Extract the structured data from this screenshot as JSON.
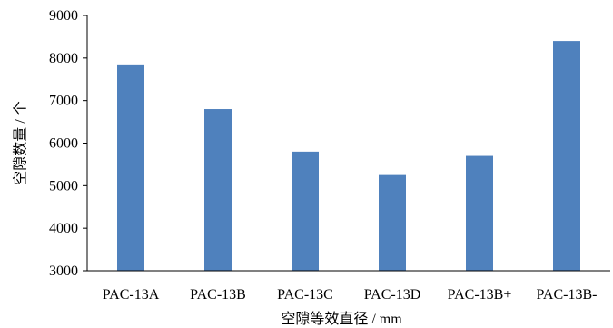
{
  "chart_data": {
    "type": "bar",
    "categories": [
      "PAC-13A",
      "PAC-13B",
      "PAC-13C",
      "PAC-13D",
      "PAC-13B+",
      "PAC-13B-"
    ],
    "values": [
      7850,
      6800,
      5800,
      5250,
      5700,
      8400
    ],
    "title": "",
    "xlabel": "空隙等效直径 / mm",
    "ylabel": "空隙数量 / 个",
    "ylim": [
      3000,
      9000
    ],
    "yticks": [
      3000,
      4000,
      5000,
      6000,
      7000,
      8000,
      9000
    ],
    "grid": false,
    "legend": "none",
    "bar_color": "#4f81bd",
    "axis_color": "#000000"
  }
}
